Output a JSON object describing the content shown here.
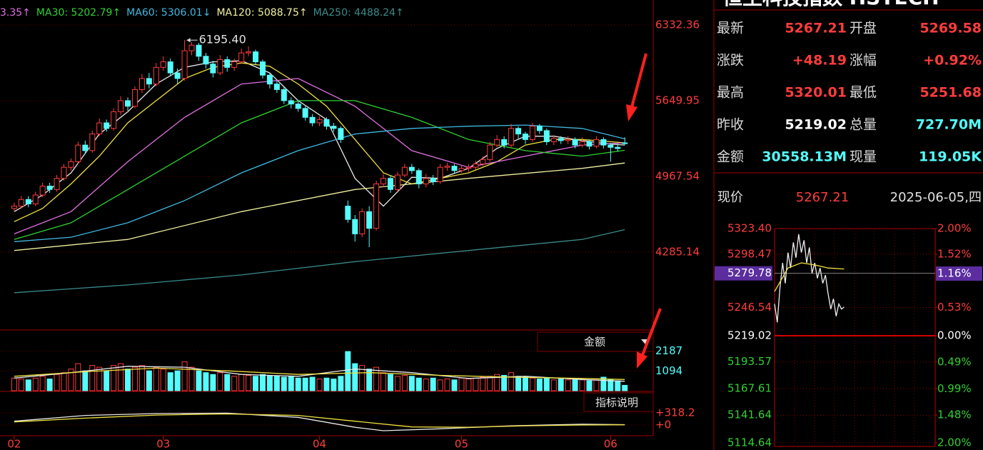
{
  "chart_data": [
    {
      "type": "candlestick",
      "up_color": "#ff3c3c",
      "down_color": "#54fcfc",
      "tick_color": "#ff3c3c",
      "x": [
        0,
        1,
        2,
        3,
        4,
        5,
        6,
        7,
        8,
        9,
        10,
        11,
        12,
        13,
        14,
        15,
        16,
        17,
        18,
        19,
        20,
        21,
        22,
        23,
        24,
        25,
        26,
        27,
        28,
        29,
        30,
        31,
        32,
        33,
        34,
        35,
        36,
        37,
        38,
        39,
        40,
        41,
        42,
        43,
        44,
        45,
        46,
        47,
        48,
        49,
        50,
        51,
        52,
        53,
        54,
        55,
        56,
        57,
        58,
        59,
        60,
        61,
        62,
        63,
        64,
        65,
        66,
        67,
        68,
        69,
        70,
        71,
        72,
        73,
        74,
        75,
        76,
        77,
        78,
        79,
        80,
        81,
        82,
        83,
        84,
        85,
        86
      ],
      "open": [
        4680,
        4700,
        4760,
        4720,
        4800,
        4880,
        4850,
        4950,
        5050,
        5100,
        5250,
        5200,
        5350,
        5450,
        5400,
        5550,
        5650,
        5600,
        5750,
        5850,
        5800,
        5950,
        6000,
        5900,
        5850,
        6100,
        6150,
        6050,
        5980,
        5900,
        6020,
        5950,
        6000,
        6080,
        6090,
        6000,
        5880,
        5800,
        5750,
        5650,
        5620,
        5580,
        5500,
        5450,
        5480,
        5420,
        5400,
        4700,
        4580,
        4450,
        4650,
        4500,
        4900,
        4950,
        4850,
        4980,
        5050,
        5020,
        4900,
        4950,
        4920,
        5050,
        5060,
        5020,
        5040,
        5050,
        5080,
        5120,
        5250,
        5300,
        5250,
        5400,
        5350,
        5300,
        5420,
        5380,
        5280,
        5310,
        5290,
        5300,
        5250,
        5280,
        5240,
        5300,
        5250,
        5230,
        5269.58
      ],
      "close": [
        4700,
        4760,
        4720,
        4800,
        4880,
        4850,
        4950,
        5050,
        5100,
        5250,
        5200,
        5350,
        5450,
        5400,
        5550,
        5650,
        5600,
        5750,
        5850,
        5800,
        5950,
        6000,
        5900,
        5850,
        6100,
        6150,
        6050,
        5980,
        5900,
        6020,
        5950,
        6000,
        6080,
        6090,
        6000,
        5880,
        5800,
        5750,
        5650,
        5620,
        5580,
        5500,
        5450,
        5480,
        5420,
        5400,
        5300,
        4580,
        4450,
        4650,
        4500,
        4900,
        4950,
        4850,
        4980,
        5050,
        5020,
        4900,
        4950,
        4920,
        5050,
        5060,
        5020,
        5040,
        5050,
        5080,
        5120,
        5250,
        5300,
        5250,
        5400,
        5350,
        5300,
        5420,
        5380,
        5280,
        5310,
        5290,
        5300,
        5250,
        5280,
        5240,
        5300,
        5250,
        5230,
        5219.02,
        5267.21
      ],
      "high": [
        4730,
        4790,
        4790,
        4830,
        4910,
        4910,
        4980,
        5080,
        5130,
        5280,
        5290,
        5380,
        5490,
        5480,
        5580,
        5690,
        5680,
        5780,
        5890,
        5900,
        5990,
        6050,
        6030,
        5940,
        6195.4,
        6180,
        6170,
        6080,
        6010,
        6060,
        6050,
        6030,
        6120,
        6140,
        6110,
        6020,
        5900,
        5830,
        5780,
        5680,
        5650,
        5600,
        5530,
        5510,
        5500,
        5450,
        5420,
        4750,
        4620,
        4680,
        4700,
        4930,
        4990,
        4980,
        5010,
        5080,
        5080,
        5040,
        4990,
        4980,
        5080,
        5090,
        5080,
        5070,
        5080,
        5110,
        5150,
        5280,
        5340,
        5330,
        5440,
        5420,
        5370,
        5450,
        5440,
        5400,
        5340,
        5330,
        5330,
        5320,
        5320,
        5300,
        5330,
        5320,
        5270,
        5260,
        5320.01
      ],
      "low": [
        4650,
        4680,
        4690,
        4700,
        4780,
        4820,
        4830,
        4930,
        5020,
        5080,
        5170,
        5180,
        5330,
        5370,
        5380,
        5520,
        5560,
        5580,
        5720,
        5760,
        5780,
        5920,
        5870,
        5800,
        5830,
        6060,
        6010,
        5940,
        5860,
        5880,
        5910,
        5920,
        5980,
        6050,
        5970,
        5850,
        5760,
        5720,
        5620,
        5580,
        5550,
        5470,
        5420,
        5420,
        5390,
        5370,
        5270,
        4550,
        4380,
        4420,
        4330,
        4480,
        4870,
        4820,
        4830,
        4960,
        4990,
        4860,
        4870,
        4890,
        4900,
        5020,
        4990,
        5000,
        5010,
        5030,
        5060,
        5100,
        5230,
        5220,
        5230,
        5310,
        5260,
        5280,
        5350,
        5250,
        5250,
        5260,
        5260,
        5220,
        5230,
        5210,
        5220,
        5220,
        5100,
        5190,
        5251.68
      ],
      "xlim": [
        -2,
        90
      ],
      "ylim": [
        3584,
        6557
      ],
      "yticks": [
        6332.36,
        5649.95,
        4967.54,
        4285.14
      ],
      "xticks": [
        {
          "value": 0,
          "label": "02"
        },
        {
          "value": 21,
          "label": "03"
        },
        {
          "value": 43,
          "label": "04"
        },
        {
          "value": 63,
          "label": "05"
        },
        {
          "value": 84,
          "label": "06"
        }
      ],
      "high_label": {
        "x": 24,
        "value": 6195.4,
        "label": "6195.40"
      },
      "series": [
        {
          "color": "#e8e8e8",
          "x": [
            0,
            4,
            8,
            12,
            16,
            20,
            24,
            28,
            32,
            36,
            40,
            44,
            48,
            52,
            56,
            60,
            64,
            68,
            72,
            76,
            80,
            84,
            86
          ],
          "values": [
            4650,
            4800,
            5000,
            5350,
            5550,
            5800,
            5950,
            6000,
            6010,
            5900,
            5650,
            5480,
            4950,
            4700,
            4960,
            4950,
            5040,
            5220,
            5330,
            5330,
            5290,
            5260,
            5250
          ]
        },
        {
          "color": "#f0e040",
          "x": [
            0,
            4,
            8,
            12,
            16,
            20,
            24,
            28,
            32,
            36,
            40,
            44,
            48,
            52,
            56,
            60,
            64,
            68,
            72,
            76,
            80,
            84,
            86
          ],
          "values": [
            4560,
            4680,
            4900,
            5150,
            5450,
            5650,
            5850,
            5950,
            5990,
            5960,
            5800,
            5600,
            5300,
            5000,
            4900,
            4950,
            5000,
            5100,
            5250,
            5300,
            5300,
            5280,
            5270
          ]
        },
        {
          "name": "3.35↑",
          "color": "#e070e0",
          "x": [
            0,
            8,
            16,
            24,
            32,
            40,
            48,
            56,
            64,
            72,
            80,
            86
          ],
          "values": [
            4450,
            4650,
            5100,
            5500,
            5800,
            5850,
            5600,
            5200,
            5050,
            5150,
            5250,
            5270
          ]
        },
        {
          "name": "MA30: 5202.79↑",
          "color": "#30d030",
          "x": [
            0,
            8,
            16,
            24,
            32,
            40,
            48,
            56,
            64,
            72,
            80,
            86
          ],
          "values": [
            4400,
            4550,
            4850,
            5150,
            5450,
            5650,
            5650,
            5500,
            5300,
            5200,
            5150,
            5202.79
          ]
        },
        {
          "name": "MA60: 5306.01↓",
          "color": "#40b8e0",
          "x": [
            0,
            8,
            16,
            24,
            32,
            40,
            48,
            56,
            64,
            72,
            80,
            86
          ],
          "values": [
            4380,
            4420,
            4550,
            4750,
            5000,
            5200,
            5350,
            5400,
            5420,
            5430,
            5400,
            5306.01
          ]
        },
        {
          "name": "MA120: 5088.75↑",
          "color": "#f0f0a0",
          "x": [
            0,
            16,
            32,
            48,
            64,
            80,
            86
          ],
          "values": [
            4300,
            4400,
            4650,
            4850,
            4950,
            5040,
            5088.75
          ]
        },
        {
          "name": "MA250: 4488.24↑",
          "color": "#3a8a8a",
          "x": [
            0,
            16,
            32,
            48,
            64,
            80,
            86
          ],
          "values": [
            3920,
            3990,
            4080,
            4200,
            4300,
            4400,
            4488.24
          ]
        }
      ]
    },
    {
      "type": "bar",
      "up_color": "#ff3c3c",
      "down_color": "#54fcfc",
      "tick_color": "#54fcfc",
      "x": [
        0,
        1,
        2,
        3,
        4,
        5,
        6,
        7,
        8,
        9,
        10,
        11,
        12,
        13,
        14,
        15,
        16,
        17,
        18,
        19,
        20,
        21,
        22,
        23,
        24,
        25,
        26,
        27,
        28,
        29,
        30,
        31,
        32,
        33,
        34,
        35,
        36,
        37,
        38,
        39,
        40,
        41,
        42,
        43,
        44,
        45,
        46,
        47,
        48,
        49,
        50,
        51,
        52,
        53,
        54,
        55,
        56,
        57,
        58,
        59,
        60,
        61,
        62,
        63,
        64,
        65,
        66,
        67,
        68,
        69,
        70,
        71,
        72,
        73,
        74,
        75,
        76,
        77,
        78,
        79,
        80,
        81,
        82,
        83,
        84,
        85,
        86
      ],
      "values": [
        700,
        650,
        600,
        700,
        800,
        650,
        900,
        1000,
        1200,
        1500,
        1100,
        1400,
        1300,
        1100,
        1400,
        1500,
        1200,
        1300,
        1400,
        1100,
        1300,
        1200,
        1000,
        1100,
        1600,
        1300,
        1100,
        1000,
        900,
        1000,
        900,
        800,
        900,
        850,
        800,
        900,
        850,
        800,
        750,
        800,
        700,
        700,
        750,
        650,
        700,
        650,
        800,
        2170,
        1500,
        1400,
        1200,
        1300,
        1000,
        900,
        800,
        850,
        800,
        700,
        650,
        700,
        600,
        650,
        600,
        700,
        650,
        700,
        750,
        800,
        900,
        850,
        1000,
        800,
        750,
        700,
        650,
        700,
        600,
        650,
        600,
        650,
        600,
        550,
        600,
        750,
        600,
        550,
        300
      ],
      "xlim": [
        -2,
        90
      ],
      "ylim": [
        0,
        3360
      ],
      "yticks": [
        2187,
        1094
      ],
      "series": [
        {
          "color": "#e8e8e8",
          "x": [
            0,
            8,
            16,
            24,
            32,
            40,
            48,
            56,
            64,
            72,
            80,
            86
          ],
          "values": [
            700,
            1000,
            1350,
            1300,
            900,
            800,
            1200,
            1000,
            680,
            800,
            620,
            520
          ]
        },
        {
          "color": "#f0e040",
          "x": [
            0,
            10,
            20,
            30,
            40,
            50,
            60,
            70,
            80,
            86
          ],
          "values": [
            800,
            1050,
            1250,
            1100,
            900,
            1000,
            850,
            750,
            680,
            620
          ]
        }
      ]
    },
    {
      "type": "line",
      "tick_color": "#ff3c3c",
      "xlim": [
        -2,
        90
      ],
      "ylim": [
        -281,
        880
      ],
      "yticks": [
        {
          "value": 318.2,
          "label": "+318.2"
        },
        {
          "value": 0,
          "label": "+0"
        }
      ],
      "series": [
        {
          "color": "#e8e8e8",
          "x": [
            0,
            10,
            20,
            30,
            40,
            48,
            52,
            60,
            70,
            80,
            86
          ],
          "values": [
            100,
            250,
            300,
            310,
            200,
            -60,
            -150,
            -100,
            -20,
            20,
            10
          ]
        },
        {
          "color": "#f0e040",
          "x": [
            0,
            10,
            20,
            30,
            40,
            48,
            56,
            64,
            72,
            80,
            86
          ],
          "values": [
            80,
            180,
            260,
            290,
            250,
            100,
            -50,
            -60,
            -20,
            0,
            5
          ]
        }
      ]
    },
    {
      "type": "line",
      "up_color": "#ff3c3c",
      "down_color": "#30d030",
      "flat_color": "#ffffff",
      "xlim": [
        0,
        240
      ],
      "ylim": [
        5114.64,
        5323.4
      ],
      "yticks": [
        {
          "value": 5323.4,
          "label": "5323.40"
        },
        5298.47,
        5246.54,
        5219.02,
        5193.57,
        5167.61,
        5141.64,
        5114.64
      ],
      "y2lim": [
        -2,
        2
      ],
      "y2ticks": [
        {
          "value": 2,
          "label": "2.00%"
        },
        {
          "value": 1.52,
          "label": "1.52%"
        },
        {
          "value": 0.53,
          "label": "0.53%"
        },
        {
          "value": 0,
          "label": "0.00%"
        },
        {
          "value": -0.49,
          "label": "0.49%"
        },
        {
          "value": -0.99,
          "label": "0.99%"
        },
        {
          "value": -1.48,
          "label": "1.48%"
        },
        {
          "value": -2,
          "label": "2.00%"
        }
      ],
      "marker": {
        "value": 5279.78,
        "pct": {
          "value": 1.16,
          "label": "1.16%"
        },
        "color": "#5b2d9e"
      },
      "series": [
        {
          "color": "#f0f0f0",
          "x": [
            0,
            4,
            8,
            12,
            16,
            20,
            24,
            28,
            32,
            36,
            40,
            44,
            48,
            52,
            56,
            60,
            64,
            68,
            72,
            76,
            80,
            84,
            88,
            92,
            96,
            100,
            104
          ],
          "values": [
            5250,
            5232,
            5265,
            5290,
            5270,
            5300,
            5285,
            5310,
            5295,
            5318,
            5300,
            5312,
            5290,
            5305,
            5280,
            5290,
            5275,
            5285,
            5270,
            5278,
            5260,
            5245,
            5255,
            5238,
            5250,
            5245,
            5247
          ]
        },
        {
          "color": "#f0e040",
          "x": [
            0,
            20,
            40,
            60,
            80,
            104
          ],
          "values": [
            5262,
            5285,
            5290,
            5288,
            5285,
            5284
          ]
        }
      ]
    }
  ],
  "toolbar": {
    "amount": "金额",
    "indicator_help": "指标说明"
  },
  "quote": {
    "title": "恒生科技指数 HSTECH",
    "items": [
      {
        "label": "最新",
        "value": "5267.21",
        "color": "#ff3c3c"
      },
      {
        "label": "开盘",
        "value": "5269.58",
        "color": "#ff3c3c"
      },
      {
        "label": "涨跌",
        "value": "+48.19",
        "color": "#ff3c3c"
      },
      {
        "label": "涨幅",
        "value": "+0.92%",
        "color": "#ff3c3c"
      },
      {
        "label": "最高",
        "value": "5320.01",
        "color": "#ff3c3c"
      },
      {
        "label": "最低",
        "value": "5251.68",
        "color": "#ff3c3c"
      },
      {
        "label": "昨收",
        "value": "5219.02",
        "color": "#ffffff"
      },
      {
        "label": "总量",
        "value": "727.70M",
        "color": "#54fcfc"
      },
      {
        "label": "金额",
        "value": "30558.13M",
        "color": "#54fcfc"
      },
      {
        "label": "现量",
        "value": "119.05K",
        "color": "#54fcfc"
      }
    ]
  },
  "intraday_header": {
    "label": "现价",
    "price": "5267.21",
    "price_color": "#ff3c3c",
    "date": "2025-06-05,四"
  }
}
